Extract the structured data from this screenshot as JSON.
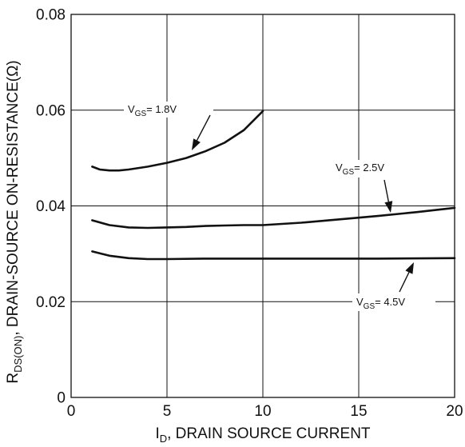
{
  "chart_data": {
    "type": "line",
    "xlim": [
      0,
      20
    ],
    "ylim": [
      0,
      0.08
    ],
    "x_ticks": [
      "0",
      "5",
      "10",
      "15",
      "20"
    ],
    "y_ticks": [
      "0",
      "0.02",
      "0.04",
      "0.06",
      "0.08"
    ],
    "grid": true,
    "xlabel": {
      "prefix": "I",
      "sub": "D",
      "suffix": ", DRAIN SOURCE CURRENT"
    },
    "ylabel": {
      "prefix": "R",
      "sub": "DS(ON)",
      "suffix": ", DRAIN-SOURCE ON-RESISTANCE(Ω)"
    },
    "series": [
      {
        "label_prefix": "V",
        "label_sub": "GS",
        "label_suffix": "= 1.8V",
        "x": [
          1.1,
          1.5,
          2,
          2.5,
          3,
          4,
          5,
          6,
          7,
          8,
          9,
          10
        ],
        "y": [
          0.0482,
          0.0476,
          0.0474,
          0.0474,
          0.0476,
          0.0482,
          0.049,
          0.05,
          0.0514,
          0.0532,
          0.0558,
          0.0598
        ]
      },
      {
        "label_prefix": "V",
        "label_sub": "GS",
        "label_suffix": "= 2.5V",
        "x": [
          1.1,
          2,
          3,
          4,
          5,
          6,
          7,
          8,
          9,
          10,
          12,
          14,
          16,
          18,
          20
        ],
        "y": [
          0.037,
          0.036,
          0.0355,
          0.0354,
          0.0355,
          0.0356,
          0.0358,
          0.0359,
          0.036,
          0.036,
          0.0365,
          0.0372,
          0.0379,
          0.0387,
          0.0396
        ]
      },
      {
        "label_prefix": "V",
        "label_sub": "GS",
        "label_suffix": "= 4.5V",
        "x": [
          1.1,
          2,
          3,
          4,
          5,
          7,
          10,
          13,
          16,
          20
        ],
        "y": [
          0.0305,
          0.0296,
          0.0291,
          0.0289,
          0.0289,
          0.029,
          0.029,
          0.029,
          0.029,
          0.0291
        ]
      }
    ]
  }
}
